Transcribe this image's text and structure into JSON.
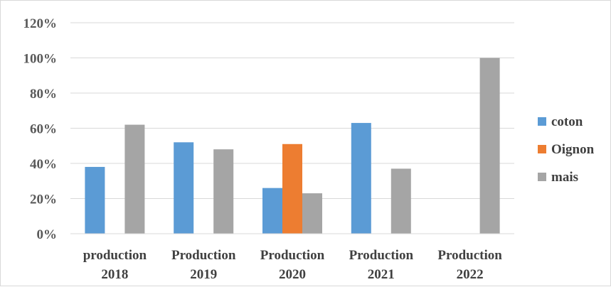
{
  "chart_data": {
    "type": "bar",
    "title": "",
    "xlabel": "",
    "ylabel": "",
    "ylim": [
      0,
      1.2
    ],
    "y_ticks": [
      0,
      0.2,
      0.4,
      0.6,
      0.8,
      1.0,
      1.2
    ],
    "y_tick_labels": [
      "0%",
      "20%",
      "40%",
      "60%",
      "80%",
      "100%",
      "120%"
    ],
    "grid": true,
    "legend_position": "right",
    "categories": [
      [
        "production",
        "2018"
      ],
      [
        "Production",
        "2019"
      ],
      [
        "Production",
        "2020"
      ],
      [
        "Production",
        "2021"
      ],
      [
        "Production",
        "2022"
      ]
    ],
    "series": [
      {
        "name": "coton",
        "color": "#5b9bd5",
        "values": [
          0.38,
          0.52,
          0.26,
          0.63,
          0
        ]
      },
      {
        "name": "Oignon",
        "color": "#ed7d31",
        "values": [
          0,
          0,
          0.51,
          0,
          0
        ]
      },
      {
        "name": "mais",
        "color": "#a5a5a5",
        "values": [
          0.62,
          0.48,
          0.23,
          0.37,
          1.0
        ]
      }
    ]
  }
}
